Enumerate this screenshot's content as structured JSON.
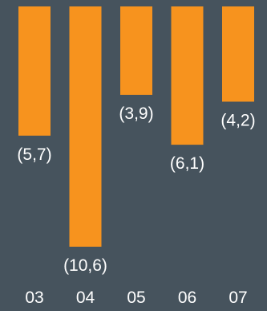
{
  "chart_data": {
    "type": "bar",
    "orientation": "vertical-downward",
    "categories": [
      "03",
      "04",
      "05",
      "06",
      "07"
    ],
    "values": [
      5.7,
      10.6,
      3.9,
      6.1,
      4.2
    ],
    "data_labels": [
      "(5,7)",
      "(10,6)",
      "(3,9)",
      "(6,1)",
      "(4,2)"
    ],
    "title": "",
    "xlabel": "",
    "ylabel": "",
    "ylim": [
      0,
      10.6
    ],
    "grid": false,
    "legend": "none"
  },
  "colors": {
    "background": "#46535d",
    "bar": "#f7931e",
    "text": "#ffffff"
  }
}
